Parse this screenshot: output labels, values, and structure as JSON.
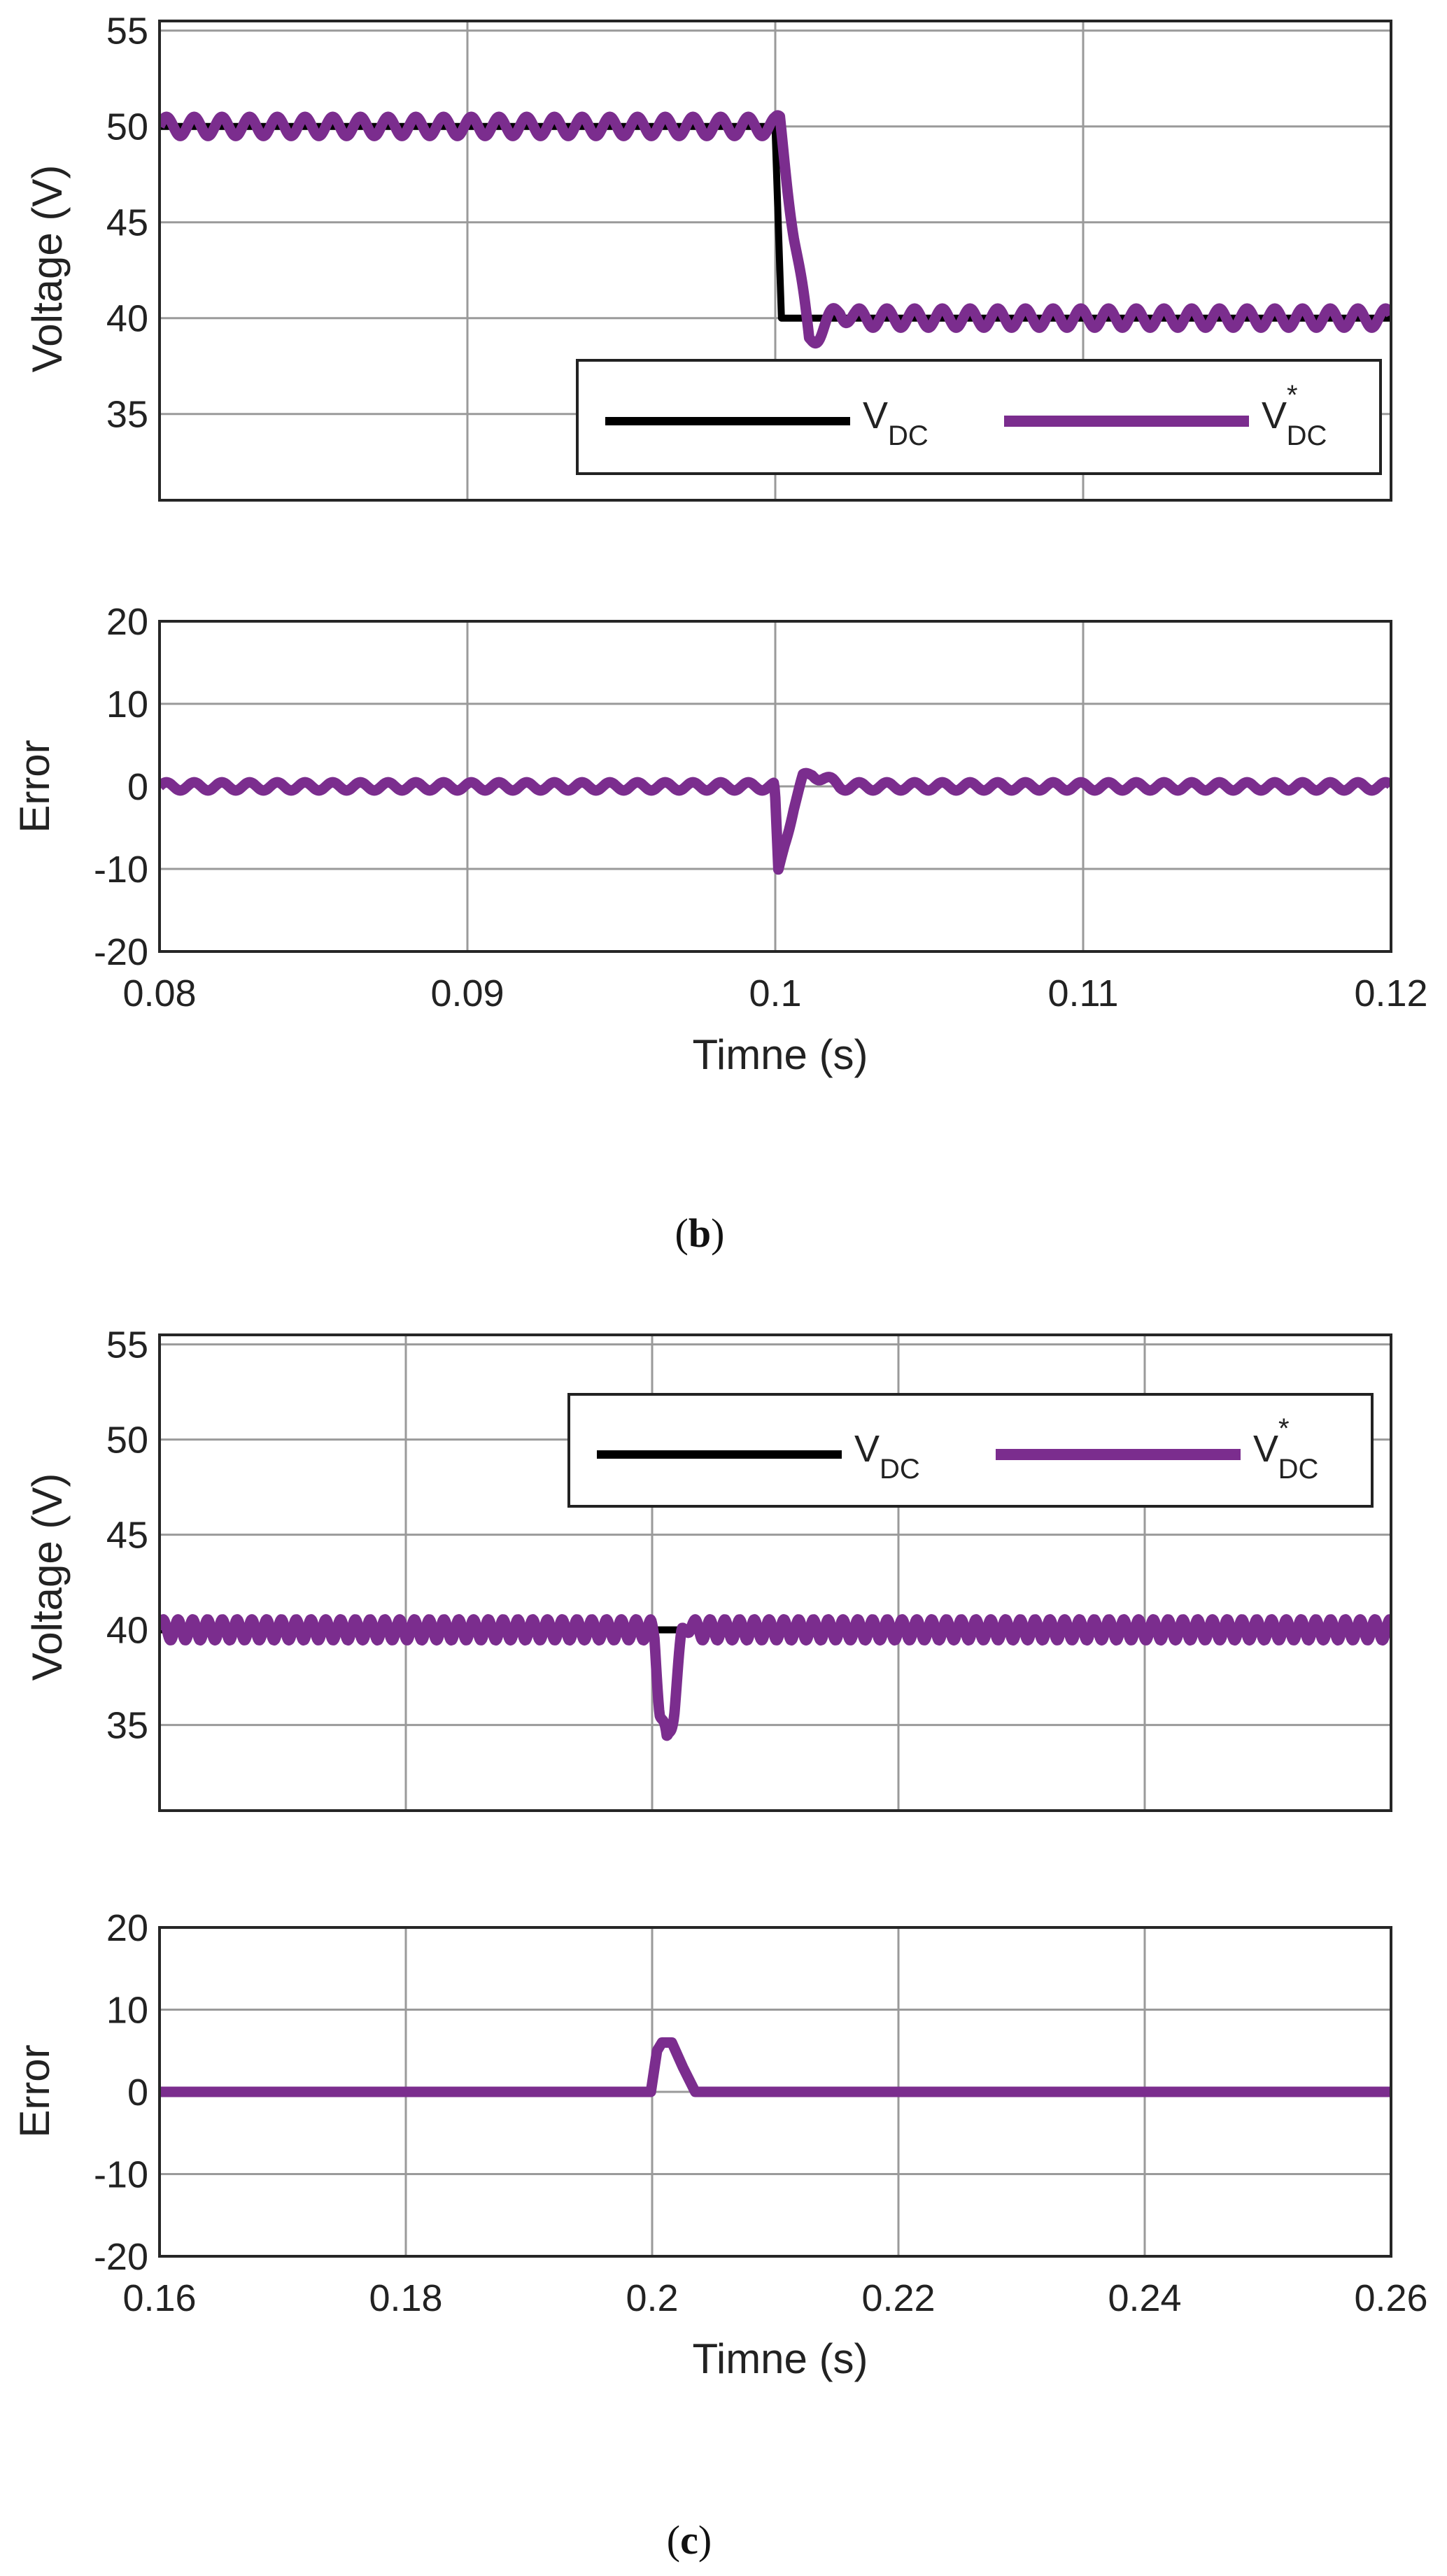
{
  "colors": {
    "vdc": "#000000",
    "vdc_ref": "#7B2D8E",
    "grid": "#9a9a9a",
    "axis": "#262626"
  },
  "panels": [
    {
      "caption_letter": "b",
      "chart_data": [
        {
          "type": "line",
          "ylabel": "Voltage (V)",
          "xlabel": "",
          "xlim": [
            0.08,
            0.12
          ],
          "ylim": [
            30.5,
            55.5
          ],
          "xticks": [
            0.08,
            0.09,
            0.1,
            0.11,
            0.12
          ],
          "xtick_labels": [],
          "yticks": [
            35,
            40,
            45,
            50,
            55
          ],
          "ytick_labels": [
            "35",
            "40",
            "45",
            "50",
            "55"
          ],
          "legend": {
            "position": "lower-right",
            "entries": [
              {
                "main": "V",
                "sub": "DC",
                "sup": ""
              },
              {
                "main": "V",
                "sub": "DC",
                "sup": "*"
              }
            ]
          },
          "series": [
            {
              "name": "VDC",
              "kind": "step",
              "x": [
                0.08,
                0.09999,
                0.09999,
                0.1002,
                0.12
              ],
              "y": [
                50,
                50,
                50,
                40,
                40
              ]
            },
            {
              "name": "VDC*",
              "kind": "ripple",
              "x": [
                0.08,
                0.09999,
                0.10015,
                0.1006,
                0.1011,
                0.1016,
                0.1021,
                0.1026,
                0.12
              ],
              "y": [
                50,
                50,
                50.2,
                44.5,
                38.8,
                39.6,
                40.4,
                40,
                40
              ],
              "ripple_amplitude": 0.5,
              "ripple_period": 0.0009
            }
          ]
        },
        {
          "type": "line",
          "ylabel": "Error",
          "xlabel": "Timne (s)",
          "xlim": [
            0.08,
            0.12
          ],
          "ylim": [
            -20,
            20
          ],
          "xticks": [
            0.08,
            0.09,
            0.1,
            0.11,
            0.12
          ],
          "xtick_labels": [
            "0.08",
            "0.09",
            "0.1",
            "0.11",
            "0.12"
          ],
          "yticks": [
            -20,
            -10,
            0,
            10,
            20
          ],
          "ytick_labels": [
            "-20",
            "-10",
            "0",
            "10",
            "20"
          ],
          "series": [
            {
              "name": "Error",
              "kind": "ripple",
              "x": [
                0.08,
                0.09995,
                0.09999,
                0.1001,
                0.1003,
                0.1006,
                0.1009,
                0.1012,
                0.1016,
                0.1021,
                0.1026,
                0.12
              ],
              "y": [
                0,
                0,
                -1,
                -10.5,
                -7,
                -2.5,
                1.0,
                1.5,
                1.0,
                0,
                0,
                0
              ],
              "ripple_amplitude": 0.5,
              "ripple_period": 0.0009
            }
          ]
        }
      ]
    },
    {
      "caption_letter": "c",
      "chart_data": [
        {
          "type": "line",
          "ylabel": "Voltage (V)",
          "xlabel": "",
          "xlim": [
            0.16,
            0.26
          ],
          "ylim": [
            30.5,
            55.5
          ],
          "xticks": [
            0.16,
            0.18,
            0.2,
            0.22,
            0.24,
            0.26
          ],
          "xtick_labels": [],
          "yticks": [
            35,
            40,
            45,
            50,
            55
          ],
          "ytick_labels": [
            "35",
            "40",
            "45",
            "50",
            "55"
          ],
          "legend": {
            "position": "top-right",
            "entries": [
              {
                "main": "V",
                "sub": "DC",
                "sup": ""
              },
              {
                "main": "V",
                "sub": "DC",
                "sup": "*"
              }
            ]
          },
          "series": [
            {
              "name": "VDC",
              "kind": "line",
              "x": [
                0.16,
                0.26
              ],
              "y": [
                40,
                40
              ]
            },
            {
              "name": "VDC*",
              "kind": "ripple",
              "x": [
                0.16,
                0.1999,
                0.2002,
                0.2006,
                0.2012,
                0.2018,
                0.2024,
                0.2028,
                0.2034,
                0.26
              ],
              "y": [
                40,
                40,
                39.5,
                36,
                33.9,
                36,
                39.6,
                40.5,
                40,
                40
              ],
              "ripple_amplitude": 0.55,
              "ripple_period": 0.0012
            }
          ]
        },
        {
          "type": "line",
          "ylabel": "Error",
          "xlabel": "Timne (s)",
          "xlim": [
            0.16,
            0.26
          ],
          "ylim": [
            -20,
            20
          ],
          "xticks": [
            0.16,
            0.18,
            0.2,
            0.22,
            0.24,
            0.26
          ],
          "xtick_labels": [
            "0.16",
            "0.18",
            "0.2",
            "0.22",
            "0.24",
            "0.26"
          ],
          "yticks": [
            -20,
            -10,
            0,
            10,
            20
          ],
          "ytick_labels": [
            "-20",
            "-10",
            "0",
            "10",
            "20"
          ],
          "series": [
            {
              "name": "Error",
              "kind": "line",
              "x": [
                0.16,
                0.1999,
                0.2004,
                0.2008,
                0.2016,
                0.2025,
                0.2035,
                0.26
              ],
              "y": [
                0,
                0,
                5,
                6,
                6,
                3,
                0,
                0
              ]
            }
          ]
        }
      ]
    }
  ]
}
